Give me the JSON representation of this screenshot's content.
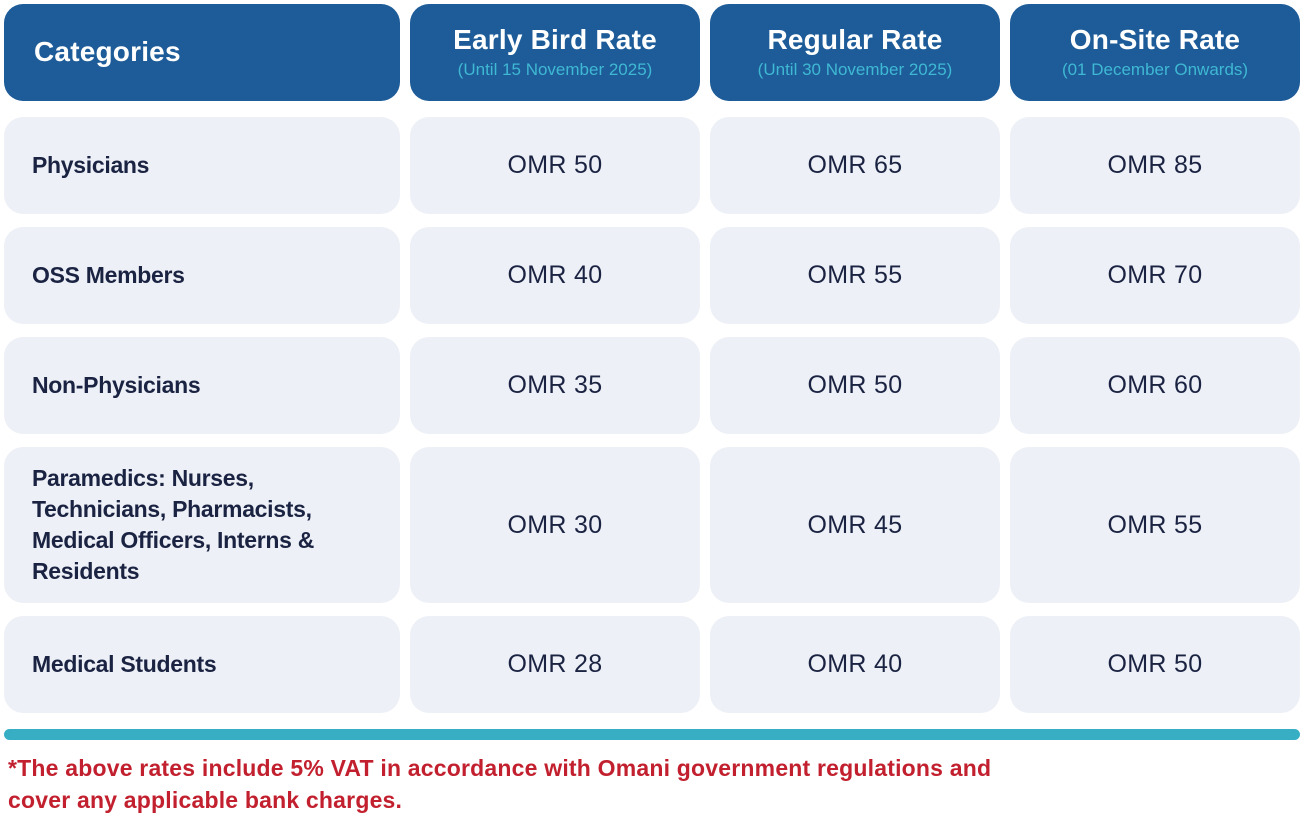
{
  "colors": {
    "header_bg": "#1d5c98",
    "header_text": "#ffffff",
    "header_subtitle": "#3fb8d3",
    "cell_bg": "#edf0f6",
    "text_dark": "#1b2342",
    "divider_teal": "#38aec5",
    "note_red": "#c2202e"
  },
  "header": {
    "columns": [
      {
        "label": "Categories",
        "subtitle": ""
      },
      {
        "label": "Early Bird Rate",
        "subtitle": "(Until 15 November 2025)"
      },
      {
        "label": "Regular Rate",
        "subtitle": "(Until 30 November 2025)"
      },
      {
        "label": "On-Site Rate",
        "subtitle": "(01 December Onwards)"
      }
    ]
  },
  "rows": [
    {
      "category": "Physicians",
      "early_bird": "OMR 50",
      "regular": "OMR 65",
      "on_site": "OMR 85"
    },
    {
      "category": "OSS Members",
      "early_bird": "OMR 40",
      "regular": "OMR 55",
      "on_site": "OMR 70"
    },
    {
      "category": "Non-Physicians",
      "early_bird": "OMR 35",
      "regular": "OMR 50",
      "on_site": "OMR 60"
    },
    {
      "category": "Paramedics: Nurses, Technicians, Pharmacists, Medical Officers, Interns & Residents",
      "early_bird": "OMR 30",
      "regular": "OMR 45",
      "on_site": "OMR 55"
    },
    {
      "category": "Medical Students",
      "early_bird": "OMR 28",
      "regular": "OMR 40",
      "on_site": "OMR 50"
    }
  ],
  "footnote": {
    "lines": [
      "*The above rates include 5% VAT in accordance with Omani government regulations and",
      "cover any applicable bank charges."
    ]
  }
}
